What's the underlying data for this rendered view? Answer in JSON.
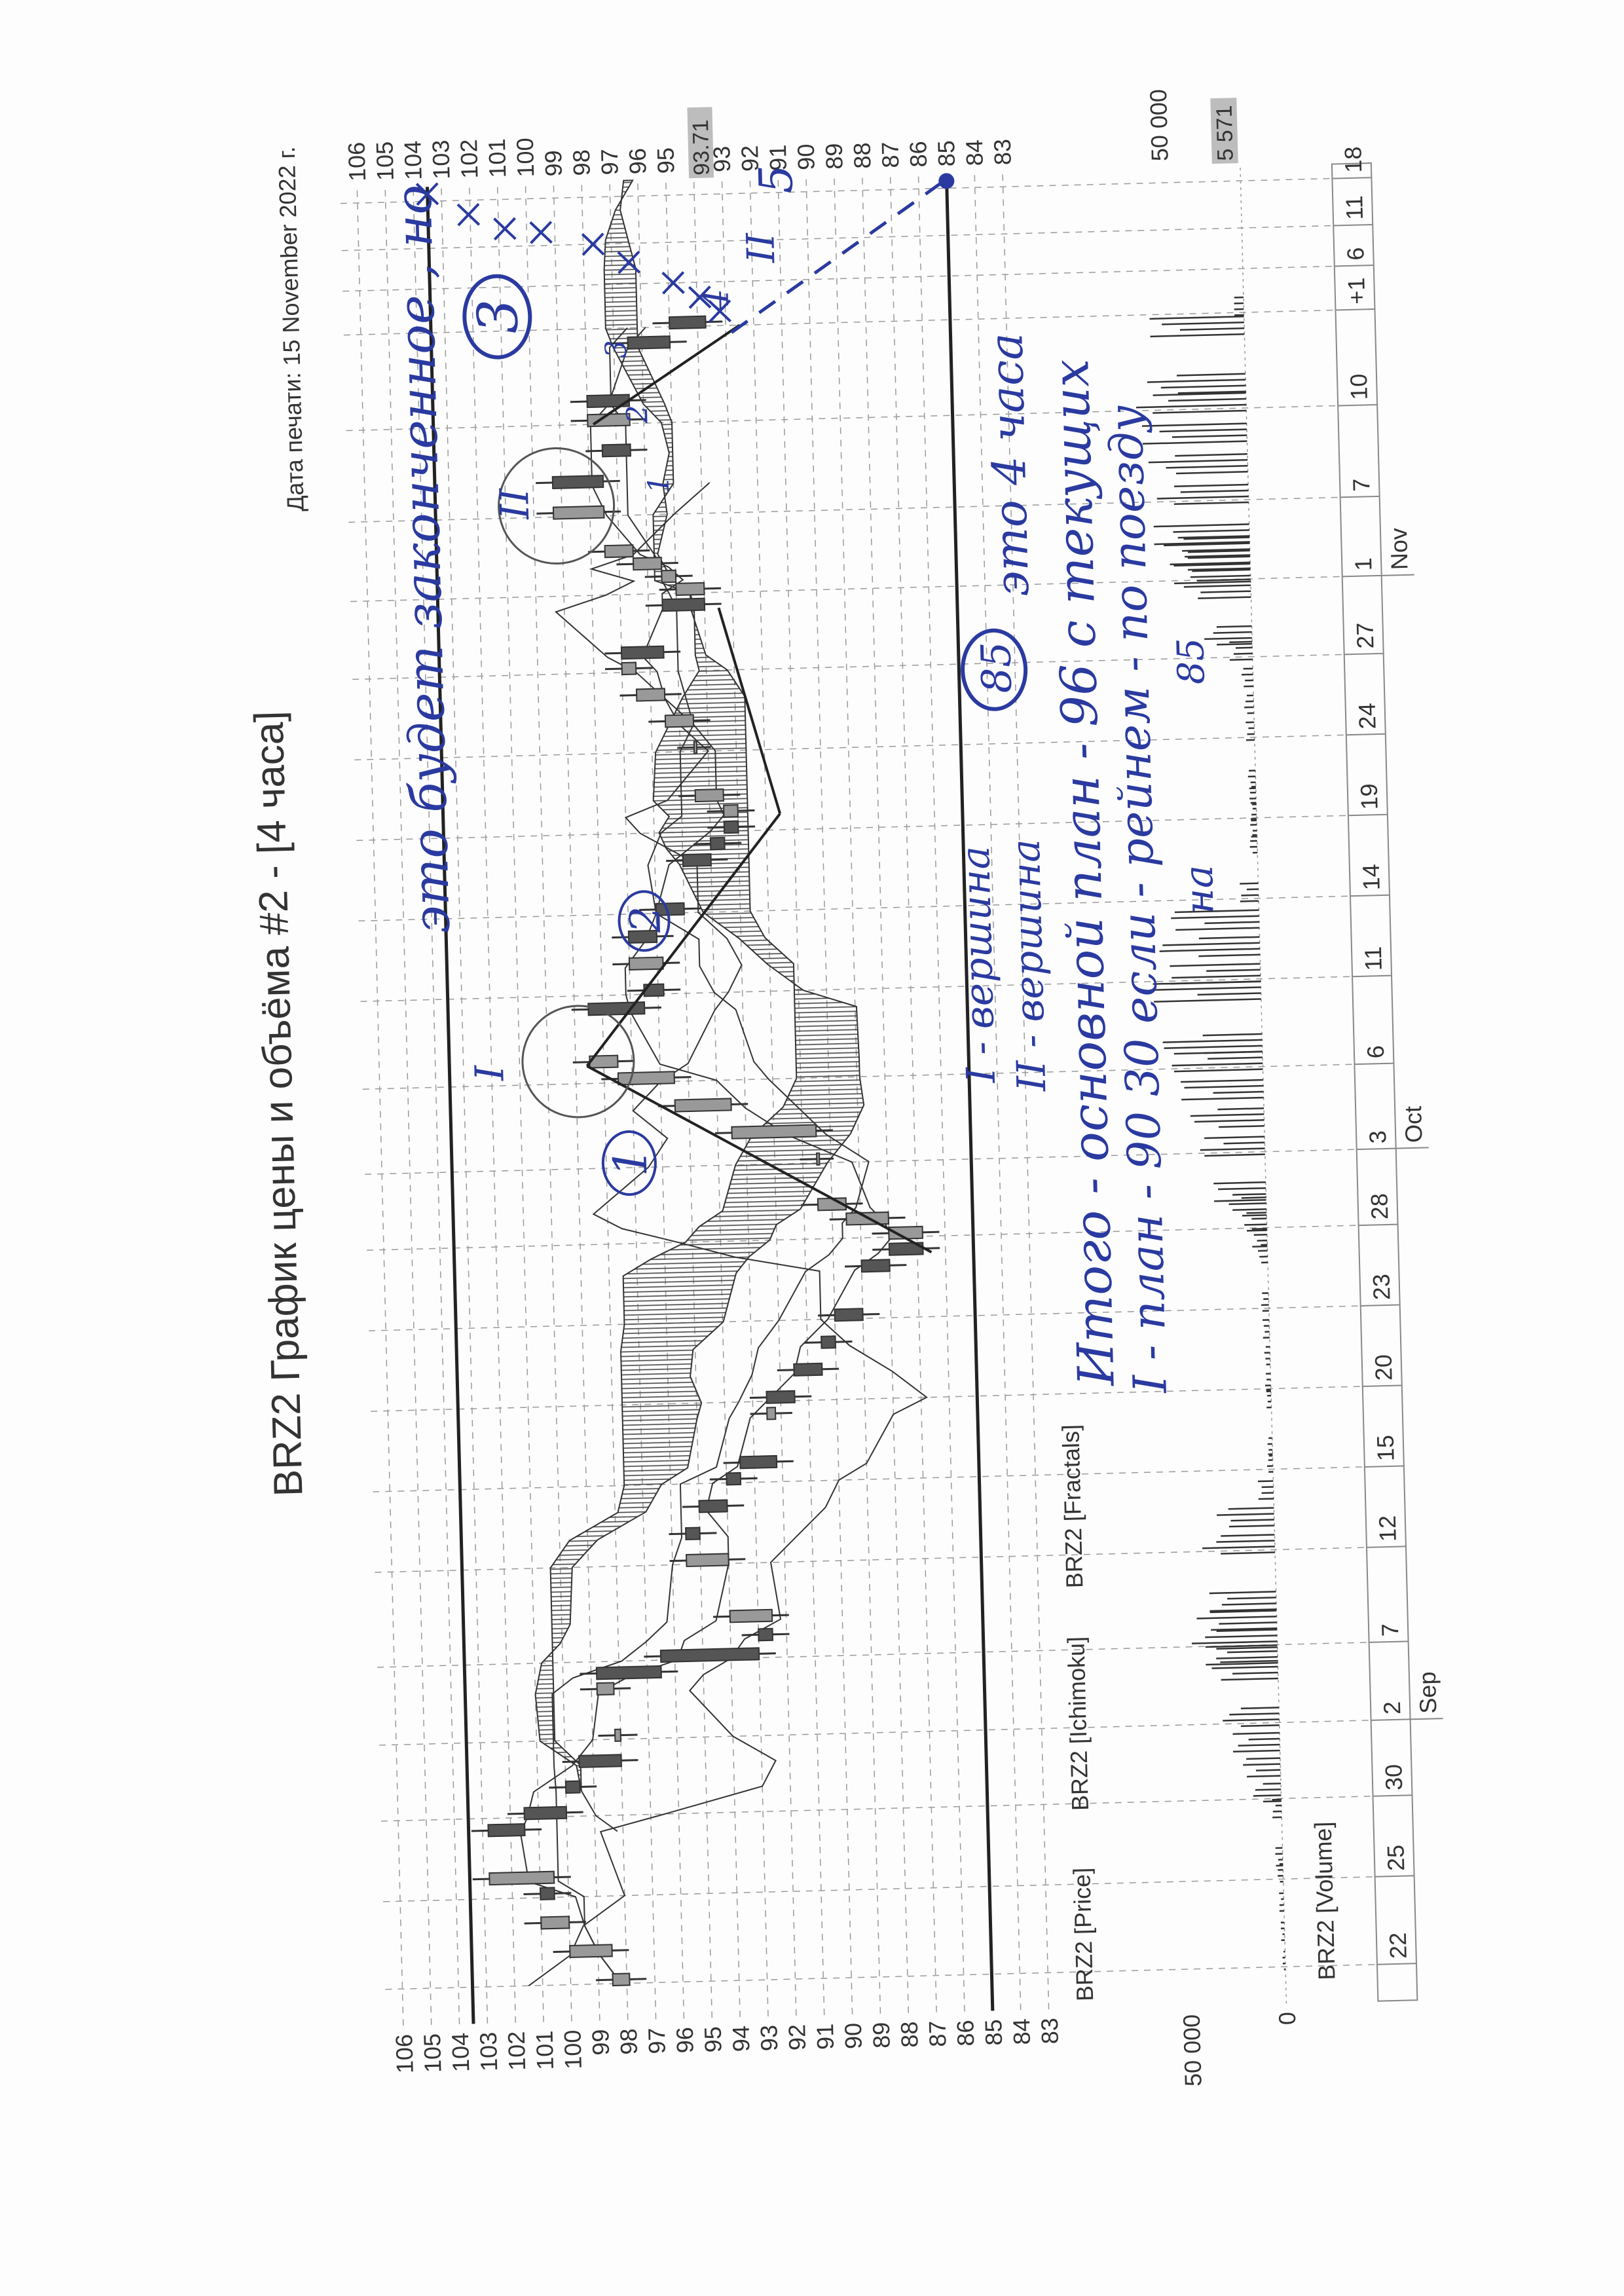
{
  "chart_data": {
    "type": "line",
    "title": "BRZ2 График цены и объёма #2 - [4 часа]",
    "print_date": "Дата печати: 15 November 2022 г.",
    "pane_labels": {
      "price": "BRZ2 [Price]",
      "ichimoku": "BRZ2 [Ichimoku]",
      "fractals": "BRZ2 [Fractals]",
      "volume": "BRZ2 [Volume]"
    },
    "ylim": [
      83,
      106
    ],
    "y_ticks": [
      "106",
      "105",
      "104",
      "103",
      "102",
      "101",
      "100",
      "99",
      "98",
      "97",
      "96",
      "95",
      "94",
      "93",
      "92",
      "91",
      "90",
      "89",
      "88",
      "87",
      "86",
      "85",
      "84",
      "83"
    ],
    "last_price_label": "93.71",
    "x_tick_labels": [
      "22",
      "25",
      "30",
      "2",
      "7",
      "12",
      "15",
      "20",
      "23",
      "28",
      "3",
      "6",
      "11",
      "14",
      "19",
      "24",
      "27",
      "1",
      "7",
      "10",
      "+1",
      "6",
      "11",
      "18"
    ],
    "month_labels": [
      "Sep",
      "Oct",
      "Nov"
    ],
    "grid": true,
    "series": [
      {
        "name": "BRZ2 [Price]",
        "x": [
          "2022-08-22",
          "2022-08-23",
          "2022-08-24",
          "2022-08-25",
          "2022-08-26",
          "2022-08-29",
          "2022-08-30",
          "2022-08-31",
          "2022-09-01",
          "2022-09-02",
          "2022-09-05",
          "2022-09-06",
          "2022-09-07",
          "2022-09-08",
          "2022-09-09",
          "2022-09-12",
          "2022-09-13",
          "2022-09-14",
          "2022-09-15",
          "2022-09-16",
          "2022-09-19",
          "2022-09-20",
          "2022-09-21",
          "2022-09-22",
          "2022-09-23",
          "2022-09-26",
          "2022-09-27",
          "2022-09-28",
          "2022-09-29",
          "2022-09-30",
          "2022-10-03",
          "2022-10-04",
          "2022-10-05",
          "2022-10-06",
          "2022-10-07",
          "2022-10-10",
          "2022-10-11",
          "2022-10-12",
          "2022-10-13",
          "2022-10-14",
          "2022-10-17",
          "2022-10-18",
          "2022-10-19",
          "2022-10-20",
          "2022-10-21",
          "2022-10-24",
          "2022-10-25",
          "2022-10-26",
          "2022-10-27",
          "2022-10-28",
          "2022-10-31",
          "2022-11-01",
          "2022-11-02",
          "2022-11-03",
          "2022-11-04",
          "2022-11-07",
          "2022-11-08",
          "2022-11-09",
          "2022-11-10",
          "2022-11-11",
          "2022-11-14",
          "2022-11-15"
        ],
        "close": [
          98.5,
          100,
          101,
          100.5,
          102.8,
          101.5,
          100,
          99.5,
          98,
          98.2,
          98.8,
          96.5,
          93,
          92.5,
          94,
          95.5,
          95,
          94,
          93.5,
          92.2,
          92.5,
          91.5,
          90.5,
          90,
          89,
          88,
          86.8,
          88,
          89.5,
          90.5,
          90.5,
          93.5,
          95.5,
          97.5,
          98.5,
          96.5,
          95.8,
          97,
          96,
          95,
          94,
          93.5,
          93,
          93.5,
          94.5,
          94.5,
          95.5,
          96.5,
          97,
          95.5,
          94,
          95,
          95.5,
          96.5,
          97.5,
          99.3,
          97.5,
          96.5,
          98,
          96.5,
          95,
          93.71
        ]
      }
    ],
    "volume": {
      "name": "BRZ2 [Volume]",
      "ylim": [
        0,
        60000
      ],
      "tick_labels": [
        "50 000",
        "0"
      ],
      "right_tick_label": "50 000",
      "last_label": "5 571",
      "values": [
        1500,
        2000,
        2500,
        3000,
        4000,
        5000,
        15000,
        20000,
        25000,
        30000,
        35000,
        38000,
        45000,
        42000,
        35000,
        38000,
        30000,
        8000,
        3000,
        2500,
        2500,
        3000,
        3000,
        3500,
        4000,
        5000,
        8000,
        12000,
        20000,
        28000,
        35000,
        40000,
        45000,
        50000,
        55000,
        60000,
        50000,
        55000,
        48000,
        10000,
        4000,
        3500,
        3000,
        3500,
        4000,
        4500,
        5000,
        6000,
        12000,
        25000,
        35000,
        40000,
        42000,
        45000,
        50000,
        48000,
        52000,
        55000,
        58000,
        52000,
        50000,
        5571
      ]
    },
    "levels": [
      103.5,
      85
    ]
  },
  "annotations": {
    "top_note": "это будет законченное , но",
    "four_hours": "это 4 часа",
    "circled_85": "85",
    "peak1": "I - вершина",
    "peak2": "II - вершина",
    "summary1": "Итого - основной план - 96 с текущих",
    "summary2": "I - план - 90 30 если - рейнем - по поезду",
    "summary3": "на",
    "summary3b": "85",
    "roman1": "I",
    "roman2": "II",
    "roman3": "II",
    "wave1": "1",
    "wave2": "2",
    "wave3": "3",
    "wave4": "4",
    "wave5": "5",
    "sub1": "1",
    "sub2": "2",
    "sub3": "3",
    "ink_color": "#2a3aa0"
  }
}
